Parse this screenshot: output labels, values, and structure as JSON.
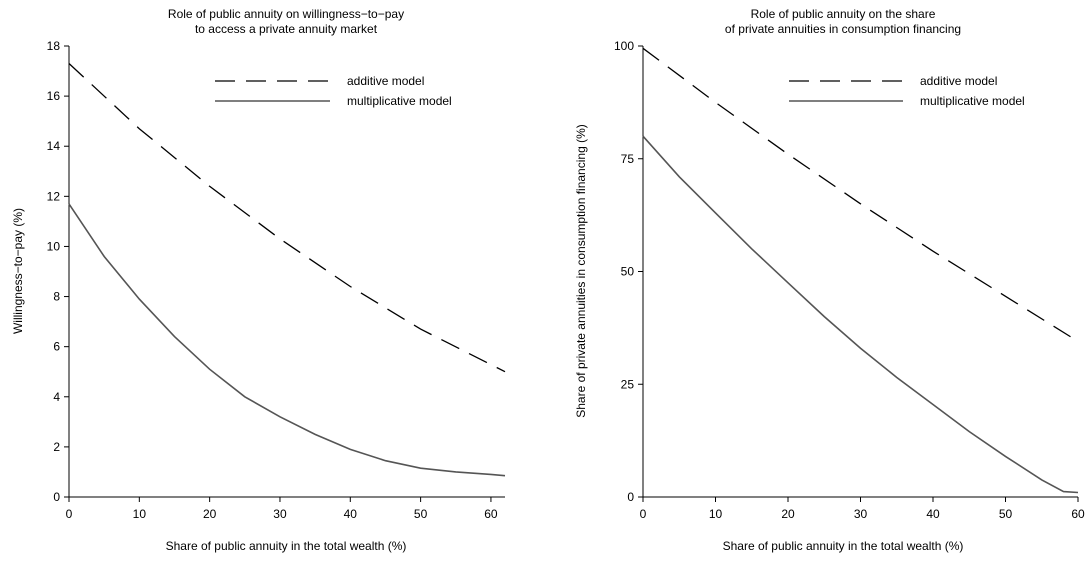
{
  "chart_data": [
    {
      "type": "line",
      "title": [
        "Role of public annuity on willingness−to−pay",
        "to access a private annuity market"
      ],
      "xlabel": "Share of public annuity in the total wealth (%)",
      "ylabel": "Willingness−to−pay (%)",
      "xlim": [
        0,
        62
      ],
      "ylim": [
        0,
        18
      ],
      "xticks": [
        0,
        10,
        20,
        30,
        40,
        50,
        60
      ],
      "yticks": [
        0,
        2,
        4,
        6,
        8,
        10,
        12,
        14,
        16,
        18
      ],
      "legend_position": "top-right",
      "series": [
        {
          "name": "additive model",
          "style": "dashed",
          "color": "#000000",
          "x": [
            0,
            10,
            20,
            30,
            40,
            50,
            62
          ],
          "y": [
            17.3,
            14.7,
            12.4,
            10.3,
            8.4,
            6.7,
            5.0
          ]
        },
        {
          "name": "multiplicative model",
          "style": "solid",
          "color": "#555555",
          "x": [
            0,
            5,
            10,
            15,
            20,
            25,
            30,
            35,
            40,
            45,
            50,
            55,
            60,
            62
          ],
          "y": [
            11.7,
            9.6,
            7.9,
            6.4,
            5.1,
            4.0,
            3.2,
            2.5,
            1.9,
            1.45,
            1.15,
            1.0,
            0.9,
            0.85
          ]
        }
      ]
    },
    {
      "type": "line",
      "title": [
        "Role of public annuity on the share",
        "of private annuities in consumption financing"
      ],
      "xlabel": "Share of public annuity in the total wealth (%)",
      "ylabel": "Share of private annuities in consumption financing (%)",
      "xlim": [
        0,
        60
      ],
      "ylim": [
        0,
        100
      ],
      "xticks": [
        0,
        10,
        20,
        30,
        40,
        50,
        60
      ],
      "yticks": [
        0,
        25,
        50,
        75,
        100
      ],
      "legend_position": "top-right",
      "series": [
        {
          "name": "additive model",
          "style": "dashed",
          "color": "#000000",
          "x": [
            0,
            10,
            20,
            30,
            40,
            50,
            60
          ],
          "y": [
            99.5,
            87.5,
            76.0,
            65.0,
            54.5,
            44.5,
            34.5
          ]
        },
        {
          "name": "multiplicative model",
          "style": "solid",
          "color": "#555555",
          "x": [
            0,
            5,
            10,
            15,
            20,
            25,
            30,
            35,
            40,
            45,
            50,
            55,
            58,
            60
          ],
          "y": [
            80,
            71,
            63,
            55,
            47.5,
            40,
            33,
            26.5,
            20.5,
            14.5,
            9.0,
            3.8,
            1.2,
            1.0
          ]
        }
      ]
    }
  ]
}
